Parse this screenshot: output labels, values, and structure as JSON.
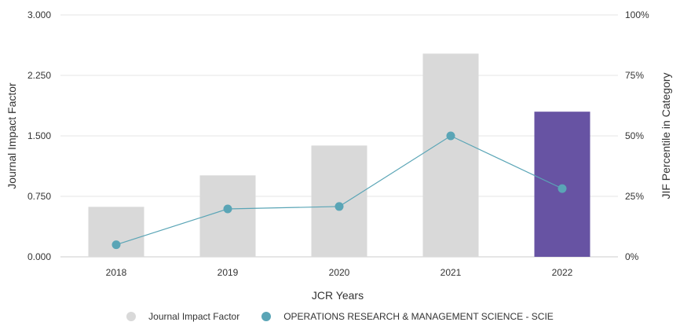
{
  "chart_data": {
    "type": "bar",
    "categories": [
      "2018",
      "2019",
      "2020",
      "2021",
      "2022"
    ],
    "series": [
      {
        "name": "Journal Impact Factor",
        "type": "bar",
        "axis": "left",
        "values": [
          0.62,
          1.01,
          1.38,
          2.52,
          1.8
        ],
        "colors": [
          "#d9d9d9",
          "#d9d9d9",
          "#d9d9d9",
          "#d9d9d9",
          "#6753a3"
        ]
      },
      {
        "name": "OPERATIONS RESEARCH & MANAGEMENT SCIENCE - SCIE",
        "type": "line",
        "axis": "right",
        "values": [
          5,
          19.8,
          20.8,
          50,
          28.2
        ],
        "color": "#5aa5b6"
      }
    ],
    "xlabel": "JCR Years",
    "ylabel": "Journal Impact Factor",
    "ylabel_right": "JIF Percentile in Category",
    "ylim": [
      0,
      3
    ],
    "ylim_right": [
      0,
      100
    ],
    "yticks": [
      "0.000",
      "0.750",
      "1.500",
      "2.250",
      "3.000"
    ],
    "yticks_right": [
      "0%",
      "25%",
      "50%",
      "75%",
      "100%"
    ],
    "grid": true,
    "legend_position": "bottom"
  },
  "legend": {
    "items": [
      {
        "label": "Journal Impact Factor",
        "color": "#d9d9d9"
      },
      {
        "label": "OPERATIONS RESEARCH & MANAGEMENT SCIENCE - SCIE",
        "color": "#5aa5b6"
      }
    ]
  }
}
